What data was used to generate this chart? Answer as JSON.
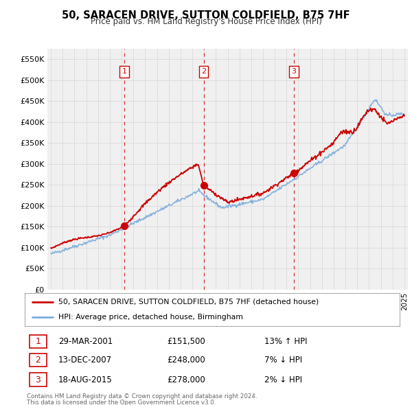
{
  "title": "50, SARACEN DRIVE, SUTTON COLDFIELD, B75 7HF",
  "subtitle": "Price paid vs. HM Land Registry's House Price Index (HPI)",
  "legend_label_red": "50, SARACEN DRIVE, SUTTON COLDFIELD, B75 7HF (detached house)",
  "legend_label_blue": "HPI: Average price, detached house, Birmingham",
  "footer1": "Contains HM Land Registry data © Crown copyright and database right 2024.",
  "footer2": "This data is licensed under the Open Government Licence v3.0.",
  "ylim": [
    0,
    575000
  ],
  "yticks": [
    0,
    50000,
    100000,
    150000,
    200000,
    250000,
    300000,
    350000,
    400000,
    450000,
    500000,
    550000
  ],
  "ytick_labels": [
    "£0",
    "£50K",
    "£100K",
    "£150K",
    "£200K",
    "£250K",
    "£300K",
    "£350K",
    "£400K",
    "£450K",
    "£500K",
    "£550K"
  ],
  "sale_points": [
    {
      "num": 1,
      "year": 2001.23,
      "price": 151500,
      "date": "29-MAR-2001",
      "price_str": "£151,500",
      "pct": "13%",
      "dir": "↑"
    },
    {
      "num": 2,
      "year": 2007.96,
      "price": 248000,
      "date": "13-DEC-2007",
      "price_str": "£248,000",
      "pct": "7%",
      "dir": "↓"
    },
    {
      "num": 3,
      "year": 2015.63,
      "price": 278000,
      "date": "18-AUG-2015",
      "price_str": "£278,000",
      "pct": "2%",
      "dir": "↓"
    }
  ],
  "red_color": "#cc0000",
  "blue_color": "#7aabdb",
  "dashed_color": "#cc0000",
  "grid_color": "#dddddd",
  "background_color": "#ffffff",
  "plot_bg_color": "#f0f0f0",
  "xlim_left": 1994.7,
  "xlim_right": 2025.3
}
